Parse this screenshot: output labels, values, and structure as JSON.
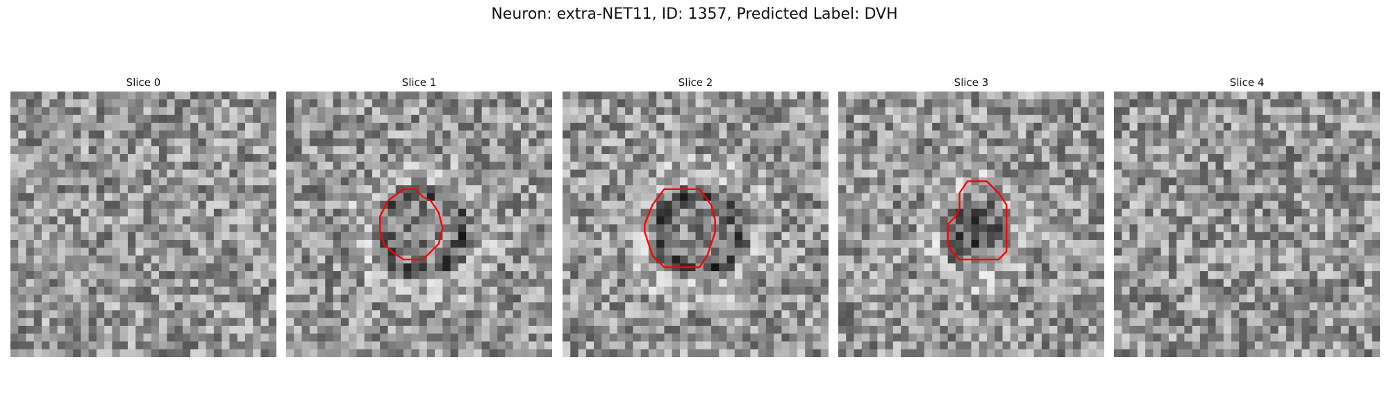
{
  "figure": {
    "title": "Neuron: extra-NET11, ID: 1357, Predicted Label: DVH"
  },
  "panels": [
    {
      "label": "Slice 0",
      "seed": 11,
      "blob": null,
      "contour": []
    },
    {
      "label": "Slice 1",
      "seed": 23,
      "blob": "ring",
      "contour": [
        [
          13,
          14
        ],
        [
          15,
          12.5
        ],
        [
          16.5,
          12.5
        ],
        [
          17.5,
          13.5
        ],
        [
          18.5,
          14
        ],
        [
          19.5,
          15.5
        ],
        [
          20,
          17.5
        ],
        [
          19.5,
          19.5
        ],
        [
          18.5,
          20.5
        ],
        [
          17.5,
          21.5
        ],
        [
          15,
          21.5
        ],
        [
          13.5,
          20.5
        ],
        [
          12.5,
          19.5
        ],
        [
          12,
          18
        ],
        [
          12,
          16
        ],
        [
          13,
          14
        ]
      ]
    },
    {
      "label": "Slice 2",
      "seed": 37,
      "blob": "ring",
      "contour": [
        [
          11.5,
          14.5
        ],
        [
          13,
          12.5
        ],
        [
          17.5,
          12.5
        ],
        [
          19,
          14.5
        ],
        [
          19.5,
          16.5
        ],
        [
          19.5,
          18
        ],
        [
          19,
          19.5
        ],
        [
          18.5,
          21
        ],
        [
          17.5,
          22.5
        ],
        [
          13,
          22.5
        ],
        [
          11.5,
          21
        ],
        [
          11,
          19.5
        ],
        [
          10.5,
          18
        ],
        [
          10.5,
          17
        ],
        [
          11.5,
          14.5
        ]
      ]
    },
    {
      "label": "Slice 3",
      "seed": 51,
      "blob": "dark",
      "contour": [
        [
          15.5,
          13
        ],
        [
          16.5,
          11.5
        ],
        [
          19,
          11.5
        ],
        [
          20.5,
          13
        ],
        [
          21.5,
          14.5
        ],
        [
          21.5,
          20.5
        ],
        [
          20.5,
          21.5
        ],
        [
          15.5,
          21.5
        ],
        [
          14.5,
          20.5
        ],
        [
          14,
          19.5
        ],
        [
          14,
          17
        ],
        [
          15,
          16
        ],
        [
          15.5,
          15
        ],
        [
          15.5,
          13
        ]
      ]
    },
    {
      "label": "Slice 4",
      "seed": 67,
      "blob": null,
      "contour": []
    }
  ],
  "colors": {
    "contour": "#ff0000",
    "background": "#ffffff"
  }
}
